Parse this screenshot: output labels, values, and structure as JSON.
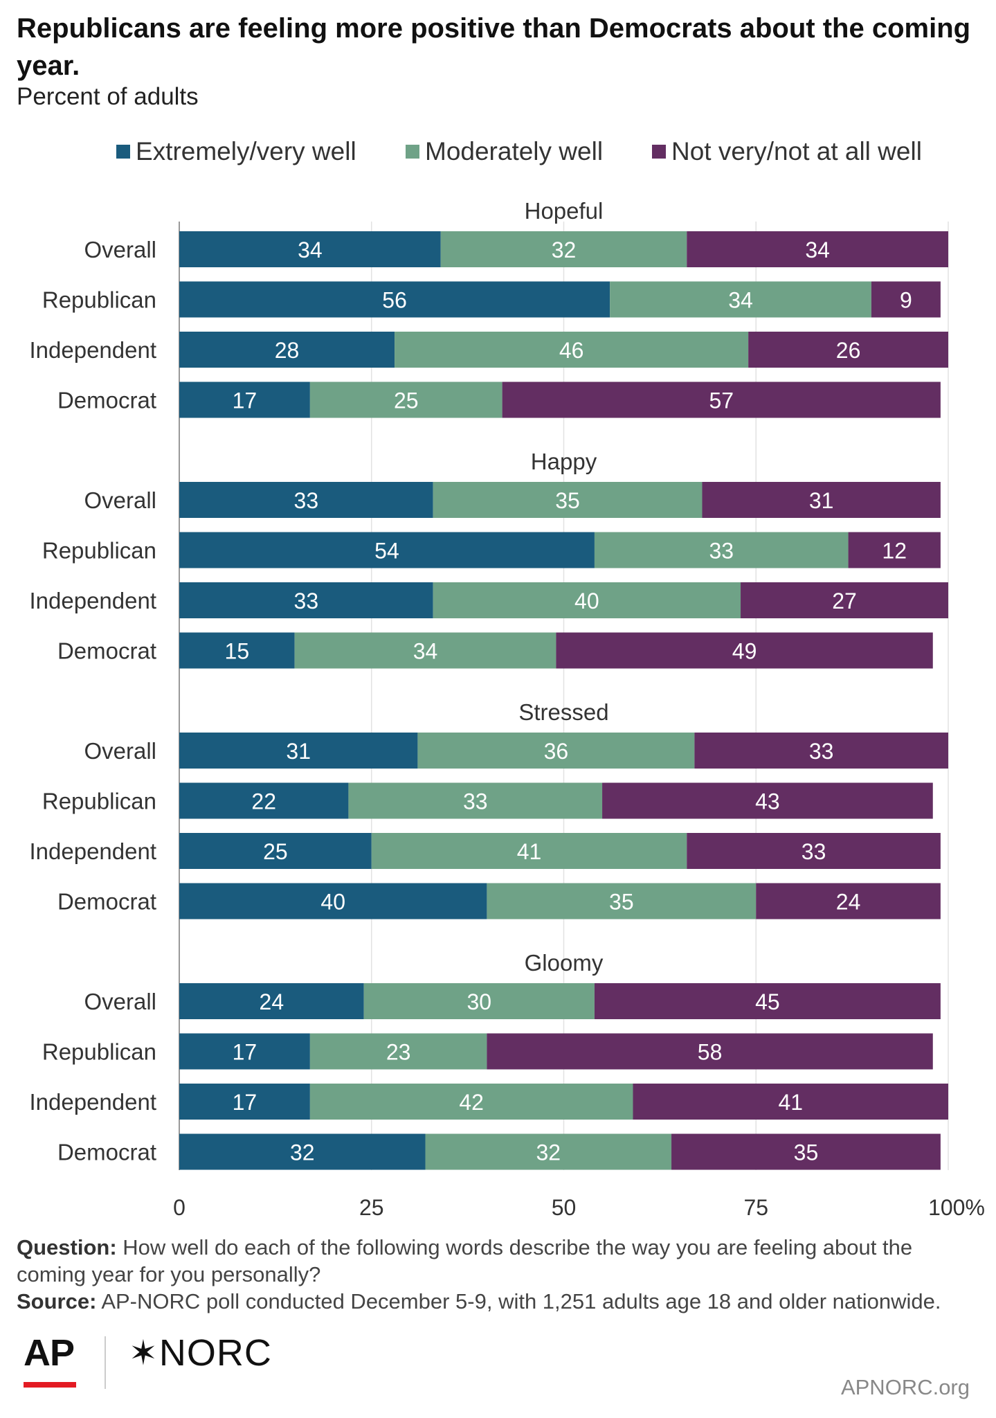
{
  "title": "Republicans are feeling more positive than Democrats about the coming year.",
  "subtitle": "Percent of adults",
  "legend": [
    {
      "label": "Extremely/very well",
      "color": "#1a5b7d"
    },
    {
      "label": "Moderately well",
      "color": "#6fa287"
    },
    {
      "label": "Not very/not at all well",
      "color": "#632e62"
    }
  ],
  "chart_data": {
    "type": "bar",
    "orientation": "horizontal",
    "stacked": true,
    "xlim": [
      0,
      100
    ],
    "xticks": [
      "0",
      "25",
      "50",
      "75",
      "100%"
    ],
    "grid": true,
    "legend_position": "top",
    "series_names": [
      "Extremely/very well",
      "Moderately well",
      "Not very/not at all well"
    ],
    "groups": [
      {
        "name": "Hopeful",
        "rows": [
          {
            "label": "Overall",
            "values": [
              34,
              32,
              34
            ]
          },
          {
            "label": "Republican",
            "values": [
              56,
              34,
              9
            ]
          },
          {
            "label": "Independent",
            "values": [
              28,
              46,
              26
            ]
          },
          {
            "label": "Democrat",
            "values": [
              17,
              25,
              57
            ]
          }
        ]
      },
      {
        "name": "Happy",
        "rows": [
          {
            "label": "Overall",
            "values": [
              33,
              35,
              31
            ]
          },
          {
            "label": "Republican",
            "values": [
              54,
              33,
              12
            ]
          },
          {
            "label": "Independent",
            "values": [
              33,
              40,
              27
            ]
          },
          {
            "label": "Democrat",
            "values": [
              15,
              34,
              49
            ]
          }
        ]
      },
      {
        "name": "Stressed",
        "rows": [
          {
            "label": "Overall",
            "values": [
              31,
              36,
              33
            ]
          },
          {
            "label": "Republican",
            "values": [
              22,
              33,
              43
            ]
          },
          {
            "label": "Independent",
            "values": [
              25,
              41,
              33
            ]
          },
          {
            "label": "Democrat",
            "values": [
              40,
              35,
              24
            ]
          }
        ]
      },
      {
        "name": "Gloomy",
        "rows": [
          {
            "label": "Overall",
            "values": [
              24,
              30,
              45
            ]
          },
          {
            "label": "Republican",
            "values": [
              17,
              23,
              58
            ]
          },
          {
            "label": "Independent",
            "values": [
              17,
              42,
              41
            ]
          },
          {
            "label": "Democrat",
            "values": [
              32,
              32,
              35
            ]
          }
        ]
      }
    ]
  },
  "footer": {
    "question_label": "Question:",
    "question_text": "How well do each of the following words describe the way you are feeling about the coming year for you personally?",
    "source_label": "Source:",
    "source_text": "AP-NORC poll conducted December 5-9, with 1,251 adults age 18 and older nationwide.",
    "logo_ap": "AP",
    "logo_norc_mark": "✶",
    "logo_norc": "NORC",
    "site": "APNORC.org"
  }
}
